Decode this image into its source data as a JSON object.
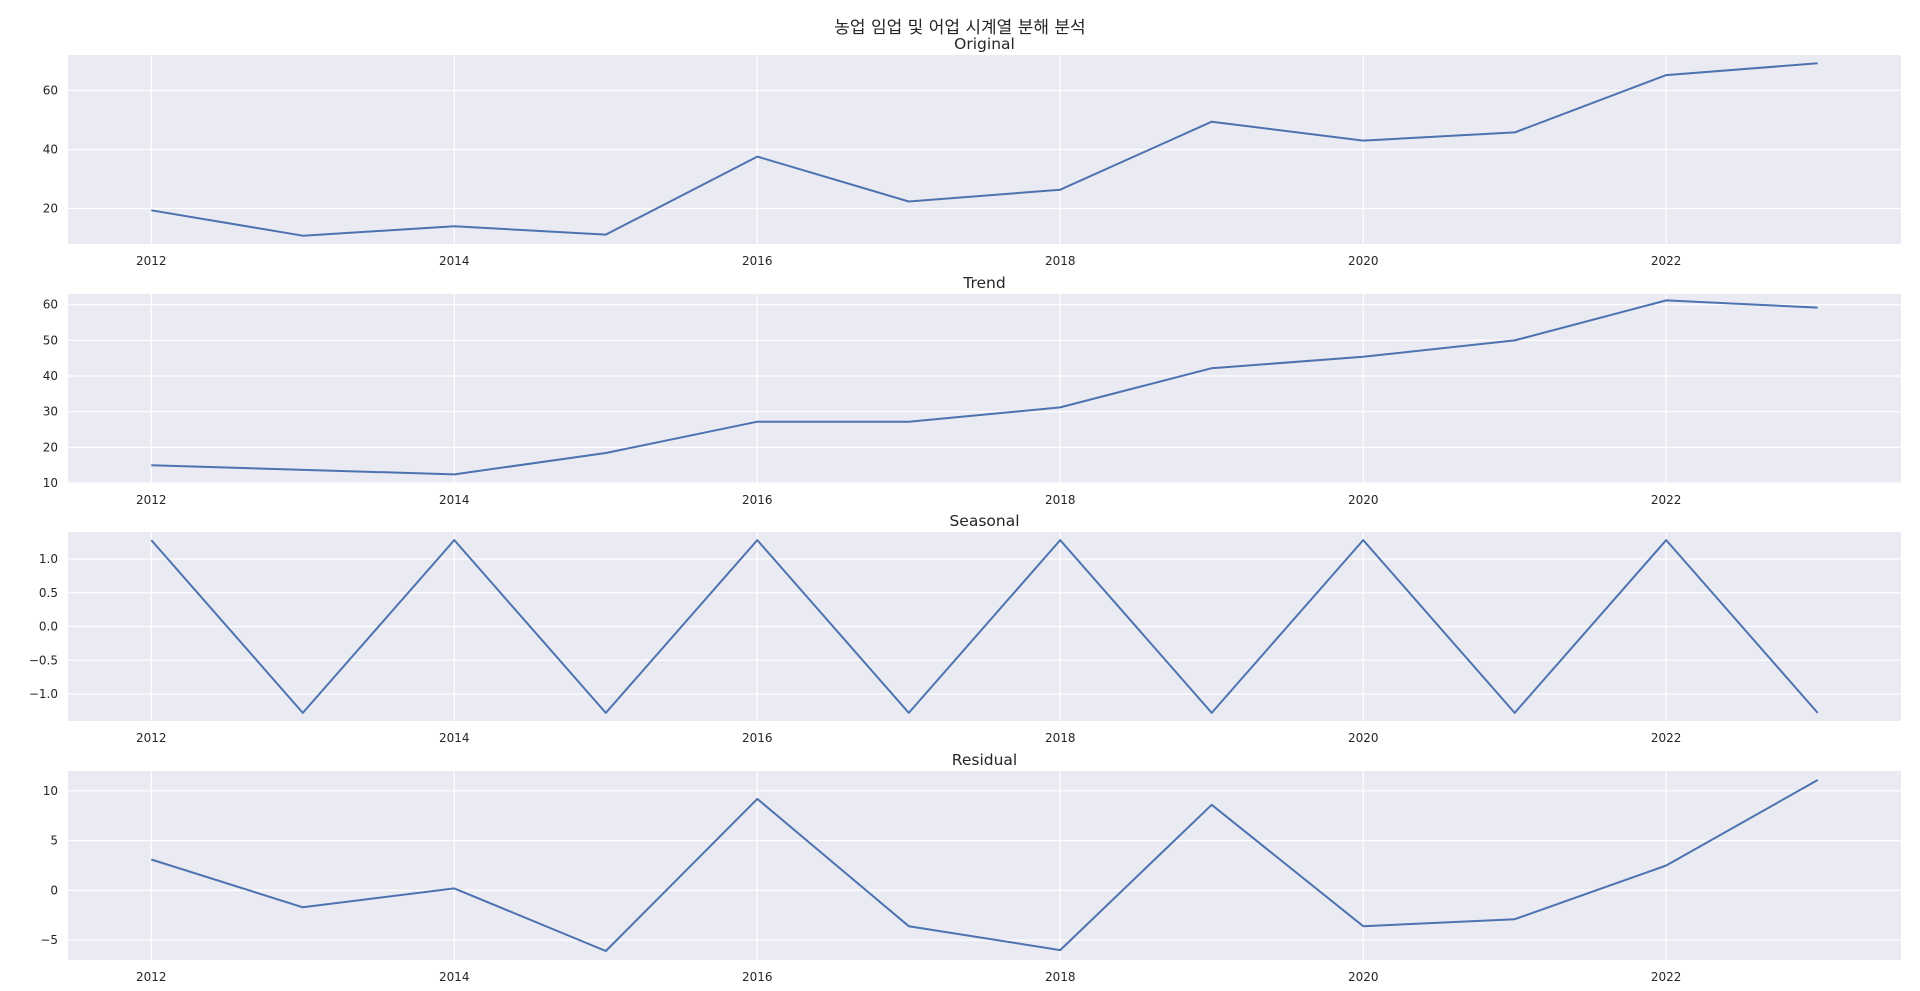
{
  "chart_data": {
    "title": "농업 임업 및 어업 시계열 분해 분석",
    "type": "line",
    "line_color": "#4c72b0",
    "background_color": "#eaeaf2",
    "grid": true,
    "x": [
      2012,
      2013,
      2014,
      2015,
      2016,
      2017,
      2018,
      2019,
      2020,
      2021,
      2022,
      2023
    ],
    "panels": [
      {
        "title": "Original",
        "type": "line",
        "ylim": [
          8,
          72
        ],
        "yticks": [
          20,
          40,
          60
        ],
        "ytick_labels": [
          "20",
          "40",
          "60"
        ],
        "xticks": [
          2012,
          2014,
          2016,
          2018,
          2020,
          2022
        ],
        "xtick_labels": [
          "2012",
          "2014",
          "2016",
          "2018",
          "2020",
          "2022"
        ],
        "series": [
          {
            "values": [
              19.4,
              10.8,
              14.0,
              11.2,
              37.6,
              22.4,
              26.4,
              49.4,
              43.0,
              45.8,
              65.2,
              69.2
            ]
          }
        ]
      },
      {
        "title": "Trend",
        "type": "line",
        "ylim": [
          10,
          63
        ],
        "yticks": [
          10,
          20,
          30,
          40,
          50,
          60
        ],
        "ytick_labels": [
          "10",
          "20",
          "30",
          "40",
          "50",
          "60"
        ],
        "xticks": [
          2012,
          2014,
          2016,
          2018,
          2020,
          2022
        ],
        "xtick_labels": [
          "2012",
          "2014",
          "2016",
          "2018",
          "2020",
          "2022"
        ],
        "series": [
          {
            "values": [
              15.0,
              null,
              12.4,
              18.4,
              27.2,
              27.2,
              31.2,
              42.2,
              45.4,
              50.0,
              61.2,
              59.2
            ]
          }
        ]
      },
      {
        "title": "Seasonal",
        "type": "line",
        "ylim": [
          -1.4,
          1.4
        ],
        "yticks": [
          1.0,
          0.5,
          0.0,
          -0.5,
          -1.0
        ],
        "ytick_labels": [
          "1.0",
          "0.5",
          "0.0",
          "−0.5",
          "−1.0"
        ],
        "xticks": [
          2012,
          2014,
          2016,
          2018,
          2020,
          2022
        ],
        "xtick_labels": [
          "2012",
          "2014",
          "2016",
          "2018",
          "2020",
          "2022"
        ],
        "series": [
          {
            "values": [
              1.28,
              -1.28,
              1.28,
              -1.28,
              1.28,
              -1.28,
              1.28,
              -1.28,
              1.28,
              -1.28,
              1.28,
              -1.28
            ]
          }
        ]
      },
      {
        "title": "Residual",
        "type": "line",
        "ylim": [
          -7,
          12
        ],
        "yticks": [
          10,
          5,
          0,
          -5
        ],
        "ytick_labels": [
          "10",
          "5",
          "0",
          "−5"
        ],
        "xticks": [
          2012,
          2014,
          2016,
          2018,
          2020,
          2022
        ],
        "xtick_labels": [
          "2012",
          "2014",
          "2016",
          "2018",
          "2020",
          "2022"
        ],
        "series": [
          {
            "values": [
              3.1,
              -1.7,
              0.2,
              -6.1,
              9.2,
              -3.6,
              -6.0,
              8.6,
              -3.6,
              -2.9,
              2.5,
              11.1
            ]
          }
        ]
      }
    ]
  }
}
